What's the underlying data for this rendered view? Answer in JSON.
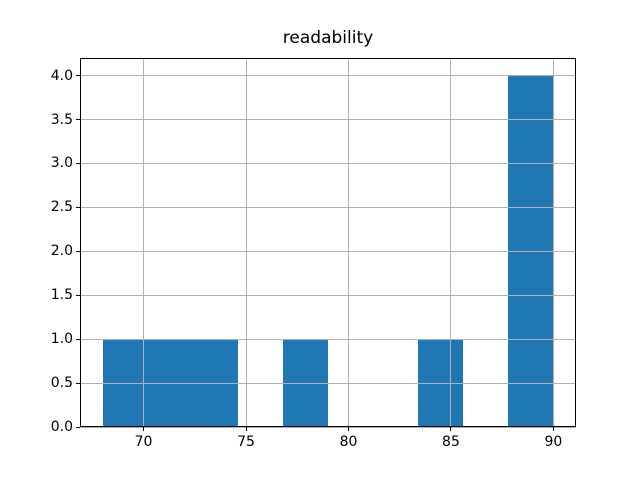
{
  "figure": {
    "background": "#ffffff"
  },
  "chart_data": {
    "type": "bar",
    "subtype": "histogram",
    "title": "readability",
    "xlabel": "",
    "ylabel": "",
    "bin_edges": [
      68.0,
      70.2,
      72.4,
      74.6,
      76.8,
      79.0,
      81.2,
      83.4,
      85.6,
      87.8,
      90.0
    ],
    "counts": [
      1,
      1,
      1,
      0,
      1,
      0,
      0,
      1,
      0,
      4
    ],
    "xlim": [
      66.9,
      91.1
    ],
    "ylim": [
      0,
      4.2
    ],
    "x_tick_values": [
      70,
      75,
      80,
      85,
      90
    ],
    "x_tick_labels": [
      "70",
      "75",
      "80",
      "85",
      "90"
    ],
    "y_tick_values": [
      0.0,
      0.5,
      1.0,
      1.5,
      2.0,
      2.5,
      3.0,
      3.5,
      4.0
    ],
    "y_tick_labels": [
      "0.0",
      "0.5",
      "1.0",
      "1.5",
      "2.0",
      "2.5",
      "3.0",
      "3.5",
      "4.0"
    ],
    "grid": true,
    "grid_above_bars": true,
    "grid_color": "#b0b0b0",
    "bar_color": "#1f77b4",
    "spine_color": "#000000",
    "tick_color": "#000000",
    "legend_position": "none"
  }
}
